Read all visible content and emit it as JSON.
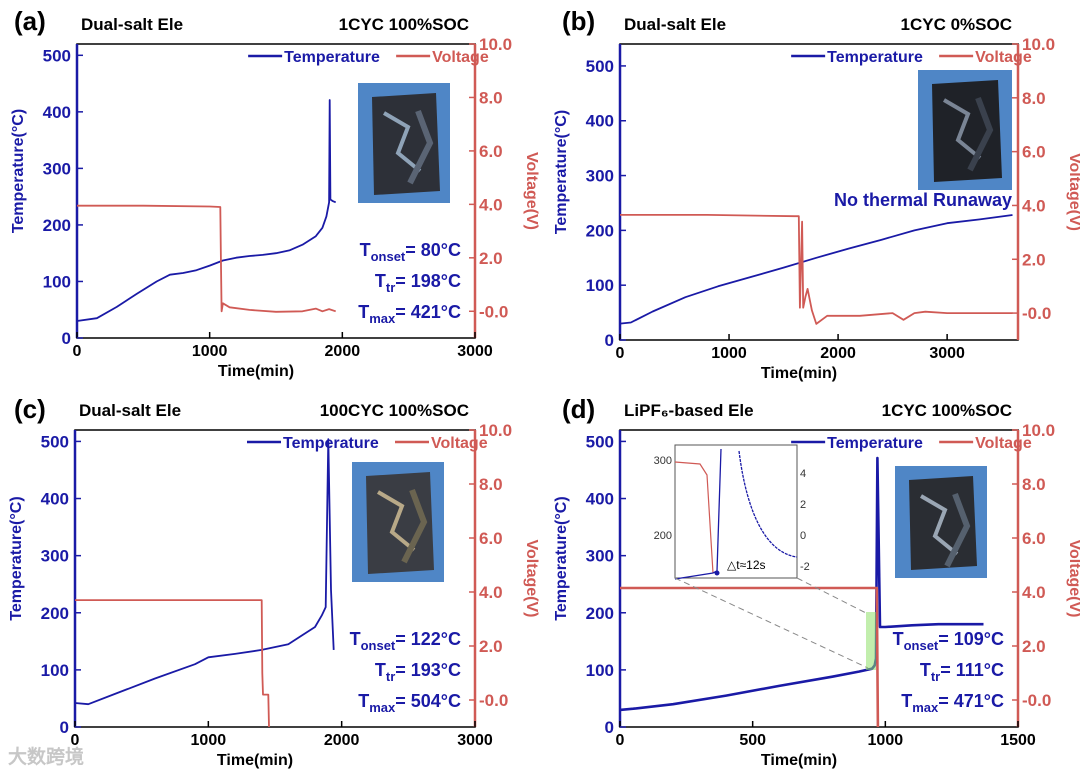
{
  "watermark": "大数跨境",
  "colors": {
    "temperature": "#1a1aa6",
    "voltage": "#d05a55",
    "axis_left": "#1a1aa6",
    "axis_right": "#d05a55"
  },
  "chart_data": [
    {
      "type": "line",
      "panel": "(a)",
      "title": "Dual-salt Ele",
      "condition": "1CYC 100%SOC",
      "xlabel": "Time(min)",
      "ylabel_left": "Temperature(°C)",
      "ylabel_right": "Voltage(V)",
      "xlim": [
        0,
        3000
      ],
      "ylim_left": [
        0,
        520
      ],
      "ylim_right": [
        -1.0,
        10.0
      ],
      "x_ticks": [
        0,
        1000,
        2000,
        3000
      ],
      "y_left_ticks": [
        0,
        100,
        200,
        300,
        400,
        500
      ],
      "y_right_ticks": [
        "-0.0",
        "2.0",
        "4.0",
        "6.0",
        "8.0",
        "10.0"
      ],
      "legend": [
        "Temperature",
        "Voltage"
      ],
      "annotations": [
        {
          "label": "T",
          "sub": "onset",
          "value": "= 80°C"
        },
        {
          "label": "T",
          "sub": "tr",
          "value": "= 198°C"
        },
        {
          "label": "T",
          "sub": "max",
          "value": "= 421°C"
        }
      ],
      "series": [
        {
          "name": "Temperature",
          "axis": "left",
          "x": [
            0,
            150,
            300,
            450,
            600,
            700,
            800,
            900,
            1000,
            1100,
            1200,
            1300,
            1400,
            1500,
            1600,
            1700,
            1800,
            1850,
            1880,
            1900,
            1905,
            1910,
            1930,
            1950
          ],
          "y": [
            30,
            35,
            55,
            78,
            100,
            112,
            115,
            120,
            128,
            137,
            142,
            145,
            147,
            150,
            155,
            165,
            180,
            195,
            215,
            240,
            421,
            245,
            242,
            240
          ]
        },
        {
          "name": "Voltage",
          "axis": "right",
          "x": [
            0,
            500,
            1000,
            1080,
            1085,
            1090,
            1100,
            1150,
            1300,
            1500,
            1700,
            1800,
            1850,
            1900,
            1950
          ],
          "y": [
            3.95,
            3.95,
            3.92,
            3.9,
            2.0,
            0.0,
            0.3,
            0.15,
            0.05,
            -0.02,
            0.0,
            0.1,
            0.0,
            0.08,
            0.0
          ]
        }
      ]
    },
    {
      "type": "line",
      "panel": "(b)",
      "title": "Dual-salt Ele",
      "condition": "1CYC 0%SOC",
      "xlabel": "Time(min)",
      "ylabel_left": "Temperature(°C)",
      "ylabel_right": "Voltage(V)",
      "xlim": [
        0,
        3650
      ],
      "ylim_left": [
        0,
        540
      ],
      "ylim_right": [
        -1.0,
        10.0
      ],
      "x_ticks": [
        0,
        1000,
        2000,
        3000
      ],
      "y_left_ticks": [
        0,
        100,
        200,
        300,
        400,
        500
      ],
      "y_right_ticks": [
        "-0.0",
        "2.0",
        "4.0",
        "6.0",
        "8.0",
        "10.0"
      ],
      "legend": [
        "Temperature",
        "Voltage"
      ],
      "annotations": [
        {
          "text": "No thermal Runaway"
        }
      ],
      "series": [
        {
          "name": "Temperature",
          "axis": "left",
          "x": [
            0,
            100,
            300,
            600,
            900,
            1200,
            1500,
            1800,
            2100,
            2400,
            2700,
            3000,
            3300,
            3600
          ],
          "y": [
            30,
            32,
            52,
            78,
            98,
            115,
            132,
            150,
            167,
            183,
            200,
            213,
            220,
            228
          ]
        },
        {
          "name": "Voltage",
          "axis": "right",
          "x": [
            0,
            800,
            1600,
            1640,
            1650,
            1670,
            1680,
            1700,
            1720,
            1760,
            1800,
            1900,
            2200,
            2500,
            2600,
            2700,
            2800,
            3000,
            3300,
            3600
          ],
          "y": [
            3.65,
            3.65,
            3.6,
            3.6,
            0.2,
            3.4,
            0.2,
            0.6,
            0.9,
            0.1,
            -0.4,
            -0.1,
            -0.1,
            0.0,
            -0.25,
            0.0,
            0.05,
            0.0,
            0.0,
            0.0
          ]
        }
      ]
    },
    {
      "type": "line",
      "panel": "(c)",
      "title": "Dual-salt Ele",
      "condition": "100CYC 100%SOC",
      "xlabel": "Time(min)",
      "ylabel_left": "Temperature(°C)",
      "ylabel_right": "Voltage(V)",
      "xlim": [
        0,
        3000
      ],
      "ylim_left": [
        0,
        520
      ],
      "ylim_right": [
        -1.0,
        10.0
      ],
      "x_ticks": [
        0,
        1000,
        2000,
        3000
      ],
      "y_left_ticks": [
        0,
        100,
        200,
        300,
        400,
        500
      ],
      "y_right_ticks": [
        "-0.0",
        "2.0",
        "4.0",
        "6.0",
        "8.0",
        "10.0"
      ],
      "legend": [
        "Temperature",
        "Voltage"
      ],
      "annotations": [
        {
          "label": "T",
          "sub": "onset",
          "value": "= 122°C"
        },
        {
          "label": "T",
          "sub": "tr",
          "value": "= 193°C"
        },
        {
          "label": "T",
          "sub": "max",
          "value": "= 504°C"
        }
      ],
      "series": [
        {
          "name": "Temperature",
          "axis": "left",
          "x": [
            0,
            100,
            300,
            600,
            900,
            1000,
            1200,
            1400,
            1600,
            1800,
            1850,
            1880,
            1900,
            1920,
            1940
          ],
          "y": [
            42,
            40,
            58,
            85,
            110,
            122,
            128,
            135,
            145,
            175,
            195,
            210,
            504,
            240,
            135
          ]
        },
        {
          "name": "Voltage",
          "axis": "right",
          "x": [
            0,
            500,
            1000,
            1300,
            1400,
            1405,
            1410,
            1450,
            1455
          ],
          "y": [
            3.7,
            3.7,
            3.7,
            3.7,
            3.7,
            1.0,
            0.2,
            0.2,
            -1.0
          ]
        }
      ]
    },
    {
      "type": "line",
      "panel": "(d)",
      "title": "LiPF₆-based Ele",
      "condition": "1CYC 100%SOC",
      "xlabel": "Time(min)",
      "ylabel_left": "Temperature(°C)",
      "ylabel_right": "Voltage(V)",
      "xlim": [
        0,
        1500
      ],
      "ylim_left": [
        0,
        520
      ],
      "ylim_right": [
        -1.0,
        10.0
      ],
      "x_ticks": [
        0,
        500,
        1000,
        1500
      ],
      "y_left_ticks": [
        0,
        100,
        200,
        300,
        400,
        500
      ],
      "y_right_ticks": [
        "-0.0",
        "2.0",
        "4.0",
        "6.0",
        "8.0",
        "10.0"
      ],
      "legend": [
        "Temperature",
        "Voltage"
      ],
      "annotations": [
        {
          "label": "T",
          "sub": "onset",
          "value": "= 109°C"
        },
        {
          "label": "T",
          "sub": "tr",
          "value": "= 111°C"
        },
        {
          "label": "T",
          "sub": "max",
          "value": "= 471°C"
        }
      ],
      "inset": {
        "y_left_ticks": [
          200,
          300
        ],
        "y_right_ticks": [
          "-2",
          "0",
          "2",
          "4"
        ],
        "annotation": "△t≈12s"
      },
      "series": [
        {
          "name": "Temperature",
          "axis": "left",
          "x": [
            0,
            50,
            200,
            400,
            600,
            800,
            900,
            950,
            960,
            965,
            970,
            980,
            1000,
            1100,
            1200,
            1300,
            1370
          ],
          "y": [
            30,
            32,
            40,
            55,
            72,
            88,
            97,
            102,
            108,
            120,
            471,
            175,
            175,
            178,
            180,
            180,
            180
          ]
        },
        {
          "name": "Voltage",
          "axis": "right",
          "x": [
            0,
            500,
            965,
            968,
            972
          ],
          "y": [
            4.15,
            4.15,
            4.15,
            4.15,
            -1.0
          ]
        }
      ]
    }
  ]
}
